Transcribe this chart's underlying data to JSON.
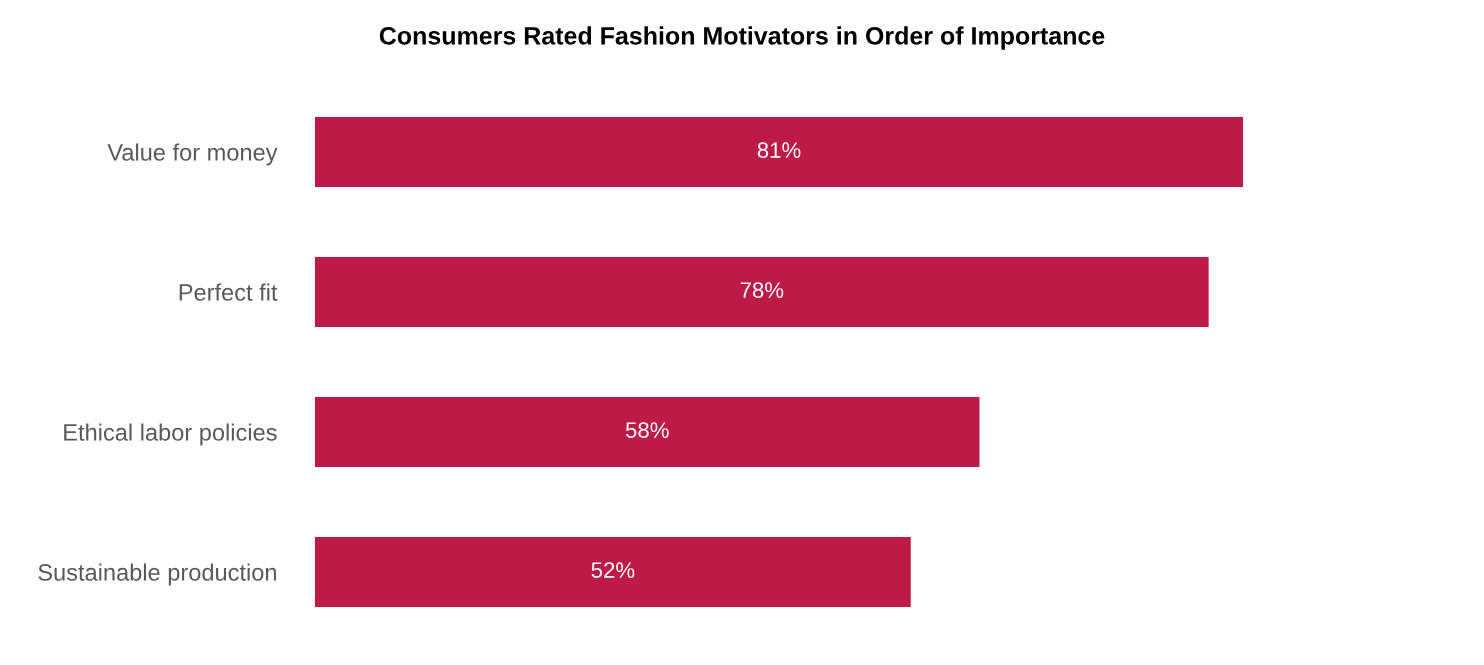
{
  "chart_data": {
    "type": "bar",
    "orientation": "horizontal",
    "title": "Consumers Rated Fashion Motivators in Order of Importance",
    "categories": [
      "Value for money",
      "Perfect fit",
      "Ethical labor policies",
      "Sustainable production"
    ],
    "values": [
      81,
      78,
      58,
      52
    ],
    "color": "#be1a48",
    "value_labels": [
      "81%",
      "78%",
      "58%",
      "52%"
    ],
    "tick_labels": "y",
    "grid": false,
    "legend": false
  }
}
